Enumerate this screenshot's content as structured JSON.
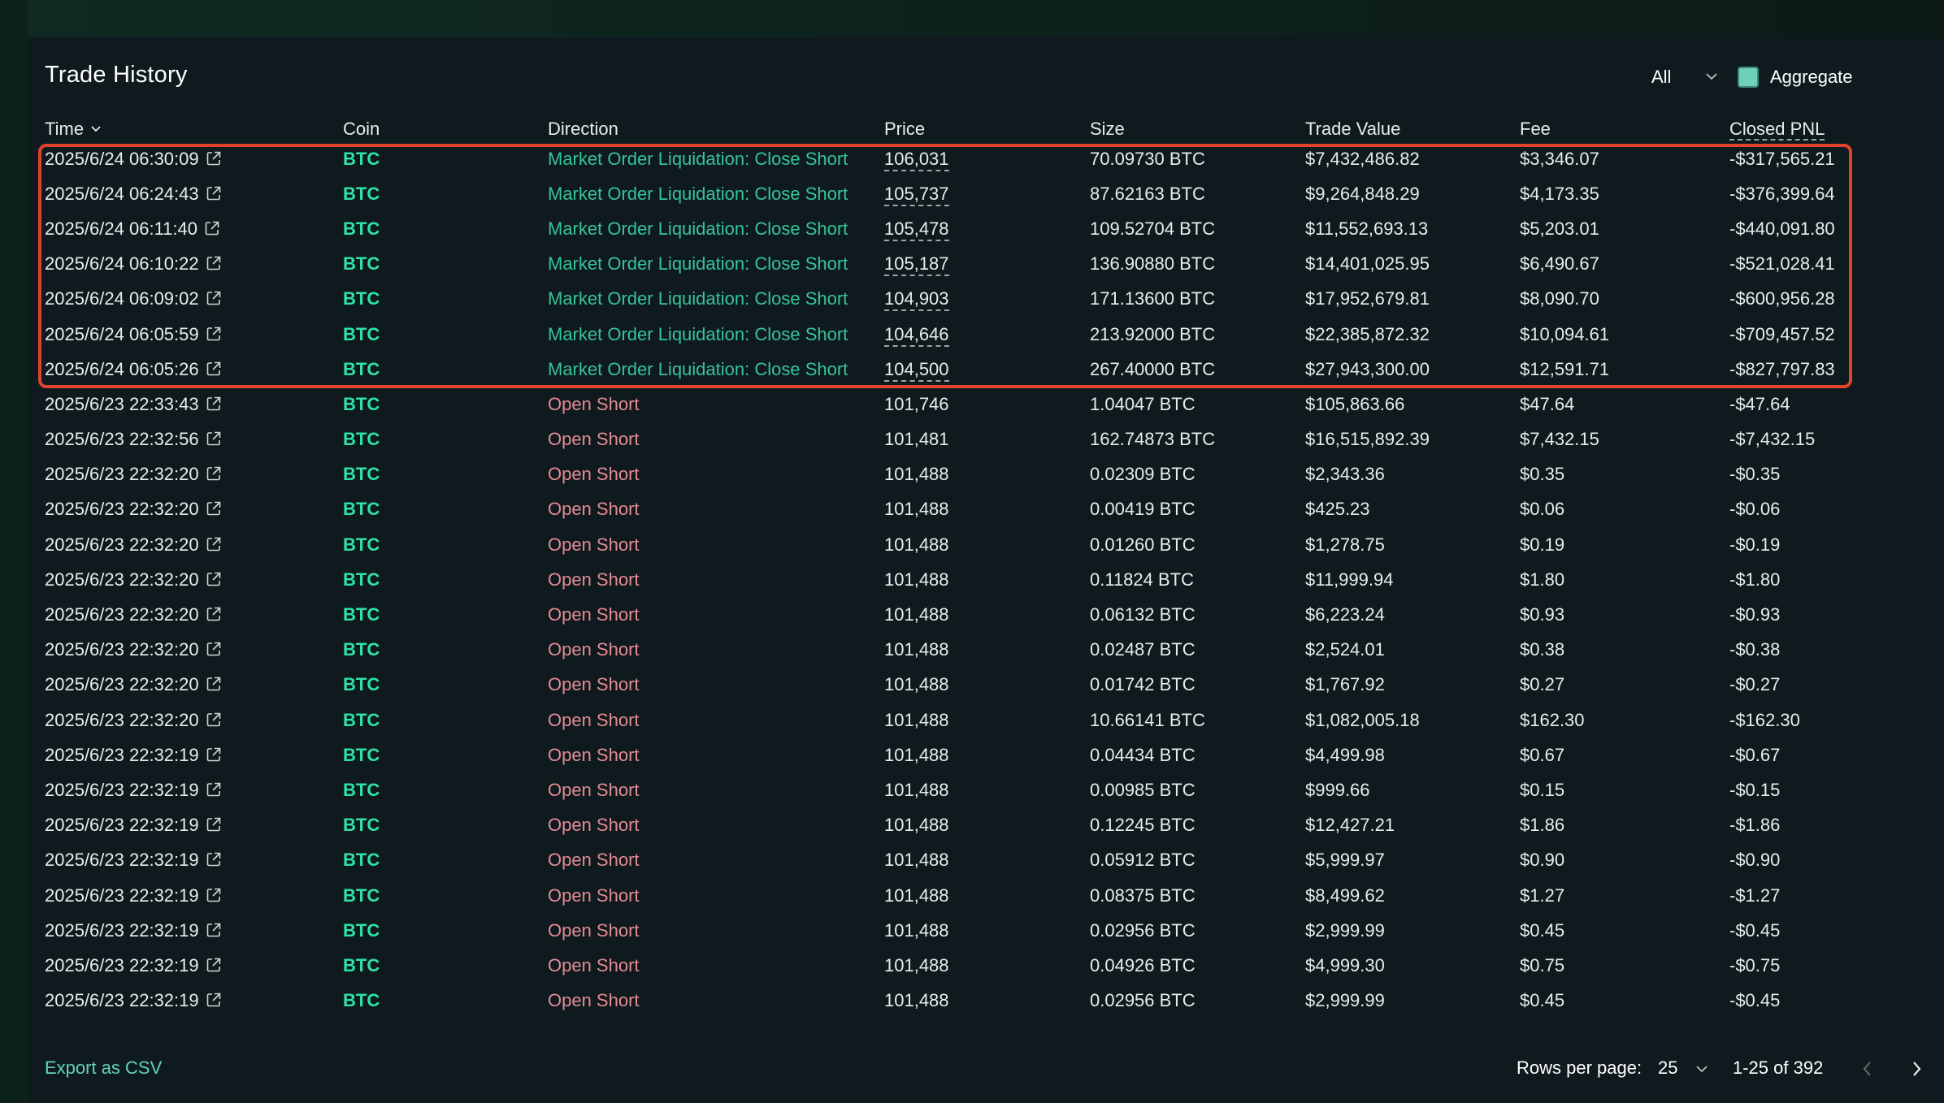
{
  "title": "Trade History",
  "controls": {
    "filter_value": "All",
    "aggregate_label": "Aggregate",
    "aggregate_checked": true
  },
  "columns": [
    "Time",
    "Coin",
    "Direction",
    "Price",
    "Size",
    "Trade Value",
    "Fee",
    "Closed PNL"
  ],
  "rows": [
    {
      "time": "2025/6/24 06:30:09",
      "coin": "BTC",
      "direction": "Market Order Liquidation: Close Short",
      "price": "106,031",
      "size": "70.09730 BTC",
      "value": "$7,432,486.82",
      "fee": "$3,346.07",
      "pnl": "-$317,565.21"
    },
    {
      "time": "2025/6/24 06:24:43",
      "coin": "BTC",
      "direction": "Market Order Liquidation: Close Short",
      "price": "105,737",
      "size": "87.62163 BTC",
      "value": "$9,264,848.29",
      "fee": "$4,173.35",
      "pnl": "-$376,399.64"
    },
    {
      "time": "2025/6/24 06:11:40",
      "coin": "BTC",
      "direction": "Market Order Liquidation: Close Short",
      "price": "105,478",
      "size": "109.52704 BTC",
      "value": "$11,552,693.13",
      "fee": "$5,203.01",
      "pnl": "-$440,091.80"
    },
    {
      "time": "2025/6/24 06:10:22",
      "coin": "BTC",
      "direction": "Market Order Liquidation: Close Short",
      "price": "105,187",
      "size": "136.90880 BTC",
      "value": "$14,401,025.95",
      "fee": "$6,490.67",
      "pnl": "-$521,028.41"
    },
    {
      "time": "2025/6/24 06:09:02",
      "coin": "BTC",
      "direction": "Market Order Liquidation: Close Short",
      "price": "104,903",
      "size": "171.13600 BTC",
      "value": "$17,952,679.81",
      "fee": "$8,090.70",
      "pnl": "-$600,956.28"
    },
    {
      "time": "2025/6/24 06:05:59",
      "coin": "BTC",
      "direction": "Market Order Liquidation: Close Short",
      "price": "104,646",
      "size": "213.92000 BTC",
      "value": "$22,385,872.32",
      "fee": "$10,094.61",
      "pnl": "-$709,457.52"
    },
    {
      "time": "2025/6/24 06:05:26",
      "coin": "BTC",
      "direction": "Market Order Liquidation: Close Short",
      "price": "104,500",
      "size": "267.40000 BTC",
      "value": "$27,943,300.00",
      "fee": "$12,591.71",
      "pnl": "-$827,797.83"
    },
    {
      "time": "2025/6/23 22:33:43",
      "coin": "BTC",
      "direction": "Open Short",
      "price": "101,746",
      "size": "1.04047 BTC",
      "value": "$105,863.66",
      "fee": "$47.64",
      "pnl": "-$47.64"
    },
    {
      "time": "2025/6/23 22:32:56",
      "coin": "BTC",
      "direction": "Open Short",
      "price": "101,481",
      "size": "162.74873 BTC",
      "value": "$16,515,892.39",
      "fee": "$7,432.15",
      "pnl": "-$7,432.15"
    },
    {
      "time": "2025/6/23 22:32:20",
      "coin": "BTC",
      "direction": "Open Short",
      "price": "101,488",
      "size": "0.02309 BTC",
      "value": "$2,343.36",
      "fee": "$0.35",
      "pnl": "-$0.35"
    },
    {
      "time": "2025/6/23 22:32:20",
      "coin": "BTC",
      "direction": "Open Short",
      "price": "101,488",
      "size": "0.00419 BTC",
      "value": "$425.23",
      "fee": "$0.06",
      "pnl": "-$0.06"
    },
    {
      "time": "2025/6/23 22:32:20",
      "coin": "BTC",
      "direction": "Open Short",
      "price": "101,488",
      "size": "0.01260 BTC",
      "value": "$1,278.75",
      "fee": "$0.19",
      "pnl": "-$0.19"
    },
    {
      "time": "2025/6/23 22:32:20",
      "coin": "BTC",
      "direction": "Open Short",
      "price": "101,488",
      "size": "0.11824 BTC",
      "value": "$11,999.94",
      "fee": "$1.80",
      "pnl": "-$1.80"
    },
    {
      "time": "2025/6/23 22:32:20",
      "coin": "BTC",
      "direction": "Open Short",
      "price": "101,488",
      "size": "0.06132 BTC",
      "value": "$6,223.24",
      "fee": "$0.93",
      "pnl": "-$0.93"
    },
    {
      "time": "2025/6/23 22:32:20",
      "coin": "BTC",
      "direction": "Open Short",
      "price": "101,488",
      "size": "0.02487 BTC",
      "value": "$2,524.01",
      "fee": "$0.38",
      "pnl": "-$0.38"
    },
    {
      "time": "2025/6/23 22:32:20",
      "coin": "BTC",
      "direction": "Open Short",
      "price": "101,488",
      "size": "0.01742 BTC",
      "value": "$1,767.92",
      "fee": "$0.27",
      "pnl": "-$0.27"
    },
    {
      "time": "2025/6/23 22:32:20",
      "coin": "BTC",
      "direction": "Open Short",
      "price": "101,488",
      "size": "10.66141 BTC",
      "value": "$1,082,005.18",
      "fee": "$162.30",
      "pnl": "-$162.30"
    },
    {
      "time": "2025/6/23 22:32:19",
      "coin": "BTC",
      "direction": "Open Short",
      "price": "101,488",
      "size": "0.04434 BTC",
      "value": "$4,499.98",
      "fee": "$0.67",
      "pnl": "-$0.67"
    },
    {
      "time": "2025/6/23 22:32:19",
      "coin": "BTC",
      "direction": "Open Short",
      "price": "101,488",
      "size": "0.00985 BTC",
      "value": "$999.66",
      "fee": "$0.15",
      "pnl": "-$0.15"
    },
    {
      "time": "2025/6/23 22:32:19",
      "coin": "BTC",
      "direction": "Open Short",
      "price": "101,488",
      "size": "0.12245 BTC",
      "value": "$12,427.21",
      "fee": "$1.86",
      "pnl": "-$1.86"
    },
    {
      "time": "2025/6/23 22:32:19",
      "coin": "BTC",
      "direction": "Open Short",
      "price": "101,488",
      "size": "0.05912 BTC",
      "value": "$5,999.97",
      "fee": "$0.90",
      "pnl": "-$0.90"
    },
    {
      "time": "2025/6/23 22:32:19",
      "coin": "BTC",
      "direction": "Open Short",
      "price": "101,488",
      "size": "0.08375 BTC",
      "value": "$8,499.62",
      "fee": "$1.27",
      "pnl": "-$1.27"
    },
    {
      "time": "2025/6/23 22:32:19",
      "coin": "BTC",
      "direction": "Open Short",
      "price": "101,488",
      "size": "0.02956 BTC",
      "value": "$2,999.99",
      "fee": "$0.45",
      "pnl": "-$0.45"
    },
    {
      "time": "2025/6/23 22:32:19",
      "coin": "BTC",
      "direction": "Open Short",
      "price": "101,488",
      "size": "0.04926 BTC",
      "value": "$4,999.30",
      "fee": "$0.75",
      "pnl": "-$0.75"
    },
    {
      "time": "2025/6/23 22:32:19",
      "coin": "BTC",
      "direction": "Open Short",
      "price": "101,488",
      "size": "0.02956 BTC",
      "value": "$2,999.99",
      "fee": "$0.45",
      "pnl": "-$0.45"
    }
  ],
  "footer": {
    "export_label": "Export as CSV",
    "rows_per_page_label": "Rows per page:",
    "rows_per_page_value": "25",
    "range_text": "1-25 of 392"
  },
  "colors": {
    "accent": "#2fe2a8",
    "liquidation": "#36c49a",
    "open_short": "#e58b93",
    "highlight": "#e0432c",
    "panel": "#0f1a1f"
  },
  "icons": {
    "external_link": "external-link-icon",
    "sort": "chevron-down-icon",
    "prev": "chevron-left-icon",
    "next": "chevron-right-icon"
  }
}
